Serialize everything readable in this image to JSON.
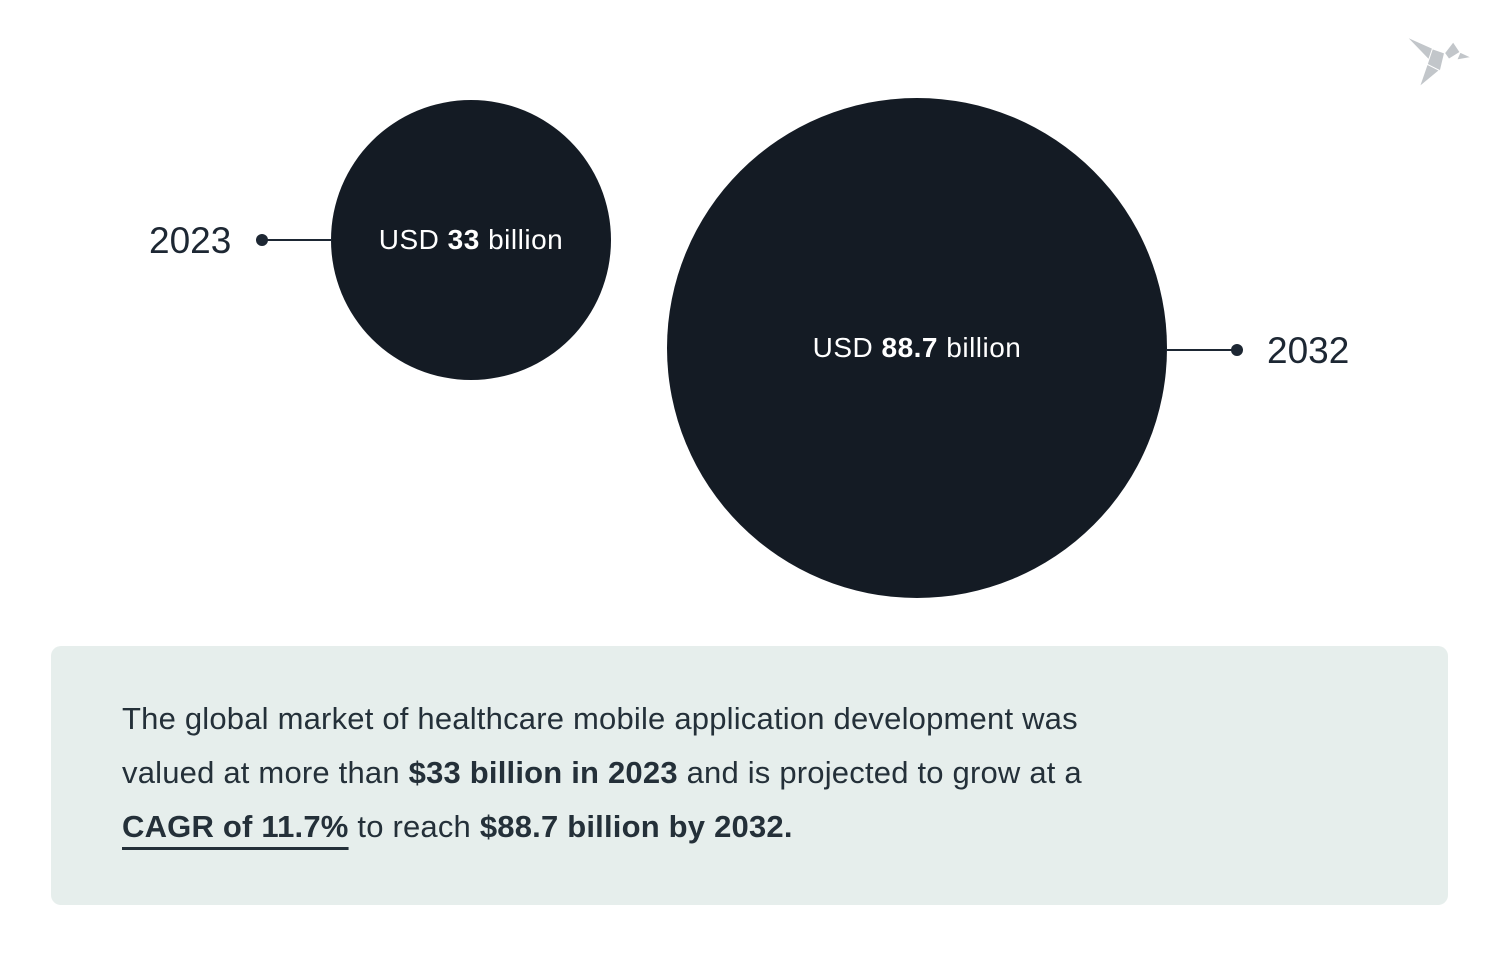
{
  "chart_data": {
    "type": "bubble",
    "title": "Global market of healthcare mobile application development",
    "categories": [
      "2023",
      "2032"
    ],
    "values": [
      33,
      88.7
    ],
    "unit": "USD billion",
    "point_labels": [
      "USD 33 billion",
      "USD 88.7 billion"
    ],
    "annotations": [
      "CAGR of 11.7%"
    ],
    "legend_position": "none",
    "grid": false
  },
  "colors": {
    "bubble_fill": "#141b24",
    "bubble_text": "#ffffff",
    "year_text": "#1d2733",
    "connector": "#1d2733",
    "summary_background": "#e6eeec",
    "summary_text": "#243039",
    "logo_gray": "#c2c6ca"
  },
  "bubbles": [
    {
      "year": "2023",
      "label_prefix": "USD ",
      "value": "33",
      "label_suffix": " billion"
    },
    {
      "year": "2032",
      "label_prefix": "USD ",
      "value": "88.7",
      "label_suffix": " billion"
    }
  ],
  "summary": {
    "segments": [
      {
        "text": "The global market of healthcare mobile application development was",
        "style": "normal"
      },
      {
        "break": true
      },
      {
        "text": "valued at more than ",
        "style": "normal"
      },
      {
        "text": "$33 billion in 2023",
        "style": "bold"
      },
      {
        "text": " and is projected to grow at a",
        "style": "normal"
      },
      {
        "break": true
      },
      {
        "text": "CAGR of 11.7%",
        "style": "bold-underline"
      },
      {
        "text": " to reach ",
        "style": "normal"
      },
      {
        "text": "$88.7 billion by 2032.",
        "style": "bold"
      }
    ]
  }
}
